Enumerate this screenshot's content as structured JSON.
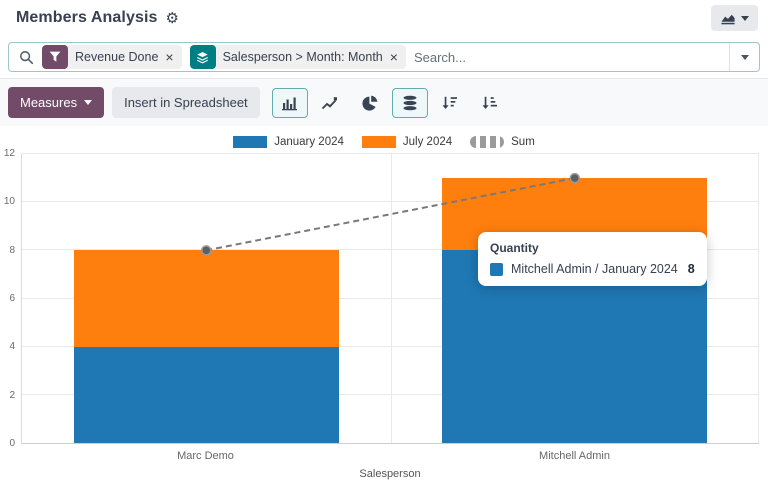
{
  "header": {
    "title": "Members Analysis",
    "gear_icon": "⚙"
  },
  "search": {
    "placeholder": "Search...",
    "facets": [
      {
        "icon": "filter-funnel",
        "color": "#714b67",
        "label": "Revenue Done",
        "remove": "×"
      },
      {
        "icon": "group-by-layers",
        "color": "#017e84",
        "label": "Salesperson > Month: Month",
        "remove": "×"
      }
    ]
  },
  "toolbar": {
    "measures_label": "Measures",
    "insert_label": "Insert in Spreadsheet",
    "icons": [
      {
        "name": "bar-chart",
        "active": true
      },
      {
        "name": "line-chart",
        "active": false
      },
      {
        "name": "pie-chart",
        "active": false
      },
      {
        "name": "stacked",
        "active": true
      },
      {
        "name": "sort-descending",
        "active": false
      },
      {
        "name": "sort-ascending",
        "active": false
      }
    ]
  },
  "chart_data": {
    "type": "bar",
    "stacked": true,
    "categories": [
      "Marc Demo",
      "Mitchell Admin"
    ],
    "series": [
      {
        "name": "January 2024",
        "color": "#1f77b4",
        "values": [
          4,
          8
        ]
      },
      {
        "name": "July 2024",
        "color": "#ff7f0e",
        "values": [
          4,
          3
        ]
      },
      {
        "name": "Sum",
        "type": "line",
        "dashed": true,
        "color": "#787878",
        "values": [
          8,
          11
        ]
      }
    ],
    "xlabel": "Salesperson",
    "ylabel": "",
    "ylim": [
      0,
      12
    ],
    "yticks": [
      0,
      2,
      4,
      6,
      8,
      10,
      12
    ],
    "legend_position": "top",
    "grid": true
  },
  "tooltip": {
    "title": "Quantity",
    "rows": [
      {
        "swatch": "#1f77b4",
        "label": "Mitchell Admin / January 2024",
        "value": "8"
      }
    ]
  }
}
